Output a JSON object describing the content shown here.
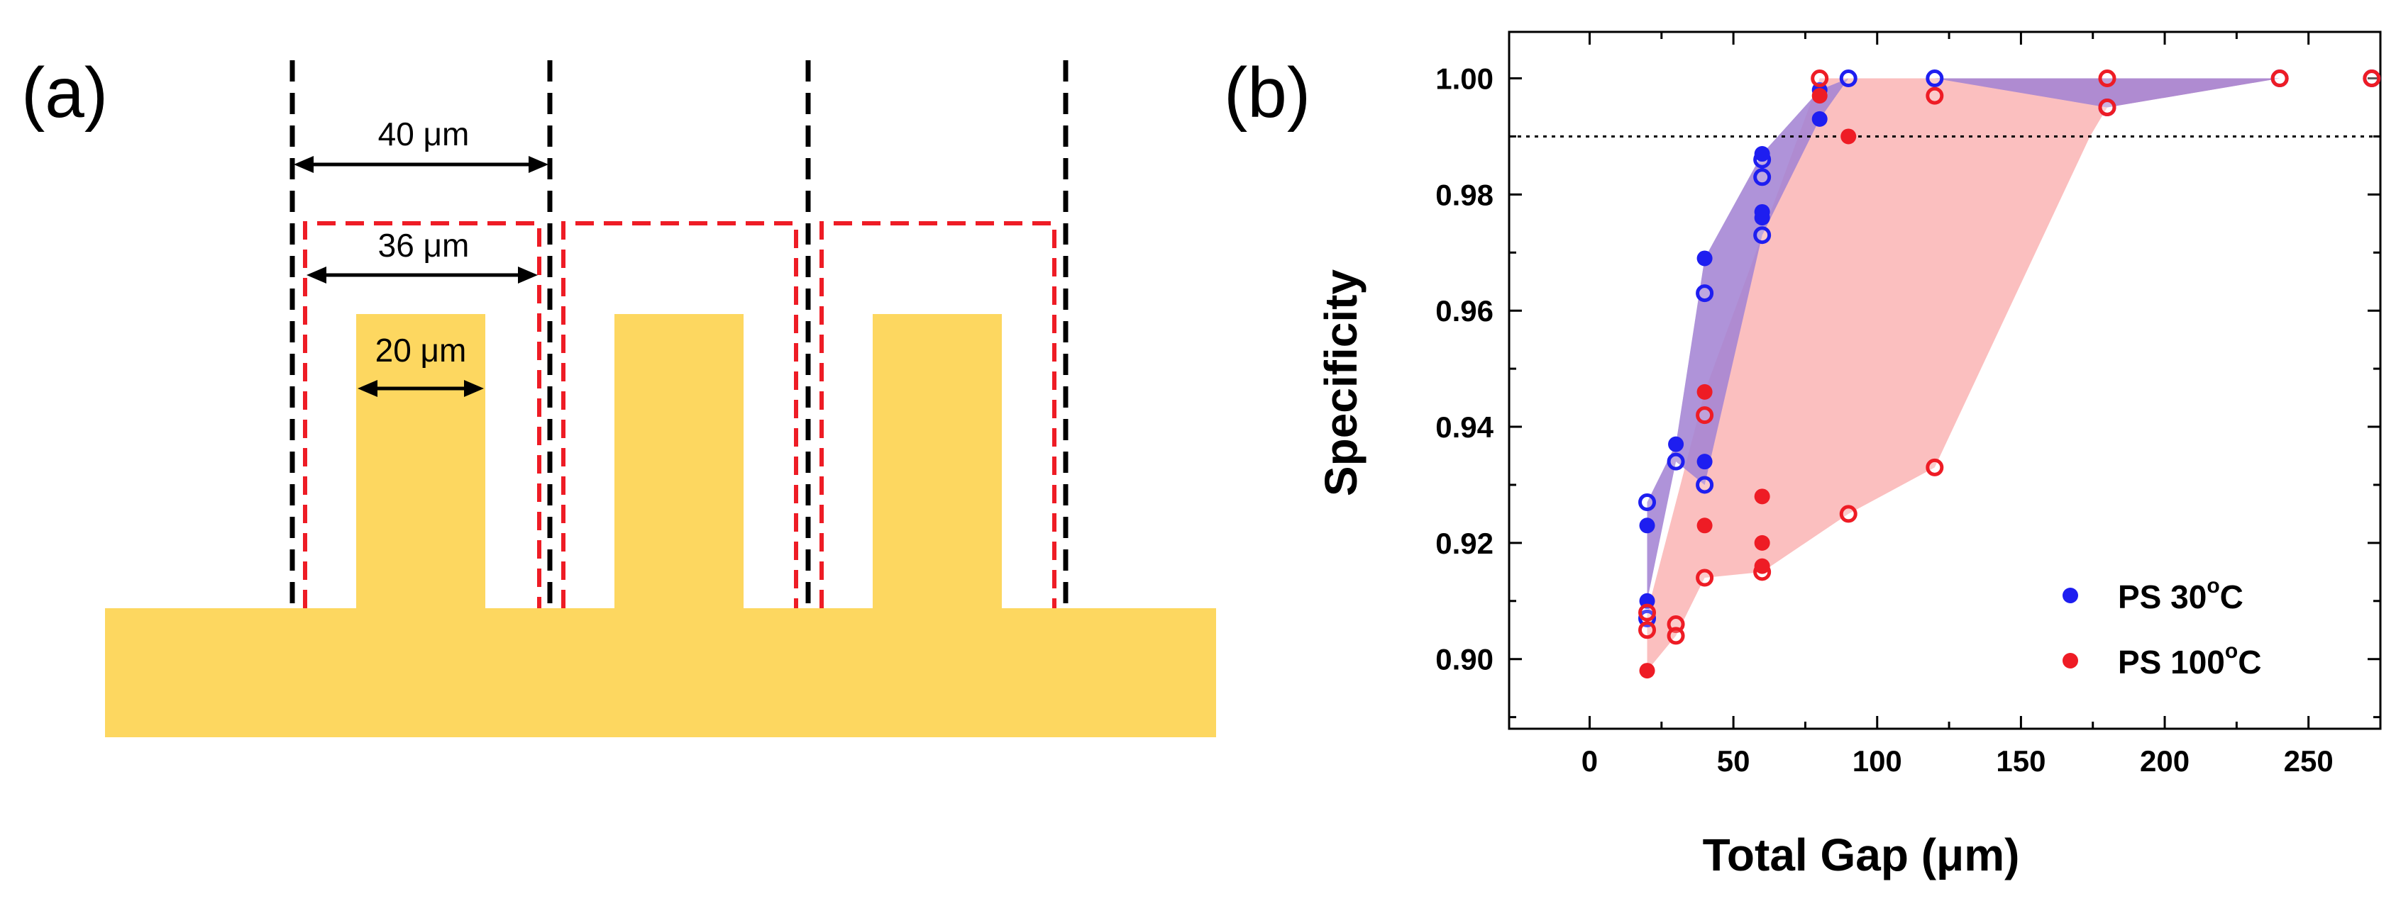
{
  "panels": {
    "a": {
      "label": "(a)",
      "dimensions": {
        "pitch": "40 μm",
        "inner": "36 μm",
        "finger": "20 μm"
      }
    },
    "b": {
      "label": "(b)"
    }
  },
  "colors": {
    "finger": "#FDD760",
    "red_dash": "#EE1C25",
    "black_dash": "#000000",
    "blue_series": "#1E1EF0",
    "red_series": "#EE1C25",
    "blue_fill": "#6A6AF0",
    "red_fill": "#F9A9A9",
    "overlap_fill": "#9E5FCC"
  },
  "chart_data": {
    "type": "scatter",
    "title": "",
    "xlabel": "Total Gap (μm)",
    "ylabel": "Specificity",
    "xlim": [
      -28,
      275
    ],
    "ylim": [
      0.888,
      1.008
    ],
    "xticks": [
      0,
      50,
      100,
      150,
      200,
      250
    ],
    "yticks": [
      0.9,
      0.92,
      0.94,
      0.96,
      0.98,
      1.0
    ],
    "xtick_labels": [
      "0",
      "50",
      "100",
      "150",
      "200",
      "250"
    ],
    "ytick_labels": [
      "0.90",
      "0.92",
      "0.94",
      "0.96",
      "0.98",
      "1.00"
    ],
    "reference_line": {
      "y": 0.99,
      "style": "dotted"
    },
    "legend": {
      "position": "bottom-right"
    },
    "series": [
      {
        "name": "PS 30°C",
        "legend_main": "PS 30",
        "legend_sup": "o",
        "legend_tail": "C",
        "color": "#1E1EF0",
        "filled_points": [
          [
            20,
            0.91
          ],
          [
            20,
            0.923
          ],
          [
            30,
            0.937
          ],
          [
            40,
            0.934
          ],
          [
            40,
            0.969
          ],
          [
            60,
            0.976
          ],
          [
            60,
            0.977
          ],
          [
            60,
            0.987
          ],
          [
            80,
            0.993
          ],
          [
            80,
            0.998
          ]
        ],
        "open_points": [
          [
            20,
            0.927
          ],
          [
            20,
            0.907
          ],
          [
            30,
            0.934
          ],
          [
            40,
            0.963
          ],
          [
            40,
            0.93
          ],
          [
            60,
            0.973
          ],
          [
            60,
            0.983
          ],
          [
            60,
            0.986
          ],
          [
            90,
            1.0
          ],
          [
            120,
            1.0
          ],
          [
            180,
            0.995
          ],
          [
            240,
            1.0
          ],
          [
            272,
            1.0
          ]
        ],
        "envelope_upper": [
          [
            20,
            0.927
          ],
          [
            30,
            0.937
          ],
          [
            40,
            0.969
          ],
          [
            60,
            0.987
          ],
          [
            80,
            0.998
          ],
          [
            90,
            1.0
          ],
          [
            272,
            1.0
          ]
        ],
        "envelope_lower": [
          [
            272,
            1.0
          ],
          [
            240,
            1.0
          ],
          [
            180,
            0.995
          ],
          [
            120,
            1.0
          ],
          [
            90,
            1.0
          ],
          [
            80,
            0.993
          ],
          [
            60,
            0.973
          ],
          [
            40,
            0.93
          ],
          [
            30,
            0.934
          ],
          [
            20,
            0.91
          ]
        ]
      },
      {
        "name": "PS 100°C",
        "legend_main": "PS 100",
        "legend_sup": "o",
        "legend_tail": "C",
        "color": "#EE1C25",
        "filled_points": [
          [
            20,
            0.898
          ],
          [
            40,
            0.923
          ],
          [
            40,
            0.946
          ],
          [
            60,
            0.928
          ],
          [
            60,
            0.92
          ],
          [
            60,
            0.916
          ],
          [
            80,
            0.997
          ],
          [
            90,
            0.99
          ]
        ],
        "open_points": [
          [
            20,
            0.908
          ],
          [
            20,
            0.905
          ],
          [
            30,
            0.906
          ],
          [
            30,
            0.904
          ],
          [
            40,
            0.942
          ],
          [
            40,
            0.914
          ],
          [
            60,
            0.915
          ],
          [
            80,
            1.0
          ],
          [
            90,
            0.925
          ],
          [
            120,
            0.997
          ],
          [
            120,
            0.933
          ],
          [
            180,
            1.0
          ],
          [
            180,
            0.995
          ],
          [
            240,
            1.0
          ],
          [
            272,
            1.0
          ]
        ],
        "envelope_upper": [
          [
            20,
            0.908
          ],
          [
            40,
            0.946
          ],
          [
            80,
            1.0
          ],
          [
            180,
            1.0
          ],
          [
            272,
            1.0
          ]
        ],
        "envelope_lower": [
          [
            272,
            1.0
          ],
          [
            240,
            1.0
          ],
          [
            180,
            0.995
          ],
          [
            174,
            0.99
          ],
          [
            120,
            0.933
          ],
          [
            90,
            0.925
          ],
          [
            60,
            0.915
          ],
          [
            40,
            0.914
          ],
          [
            30,
            0.904
          ],
          [
            20,
            0.898
          ]
        ]
      }
    ]
  }
}
